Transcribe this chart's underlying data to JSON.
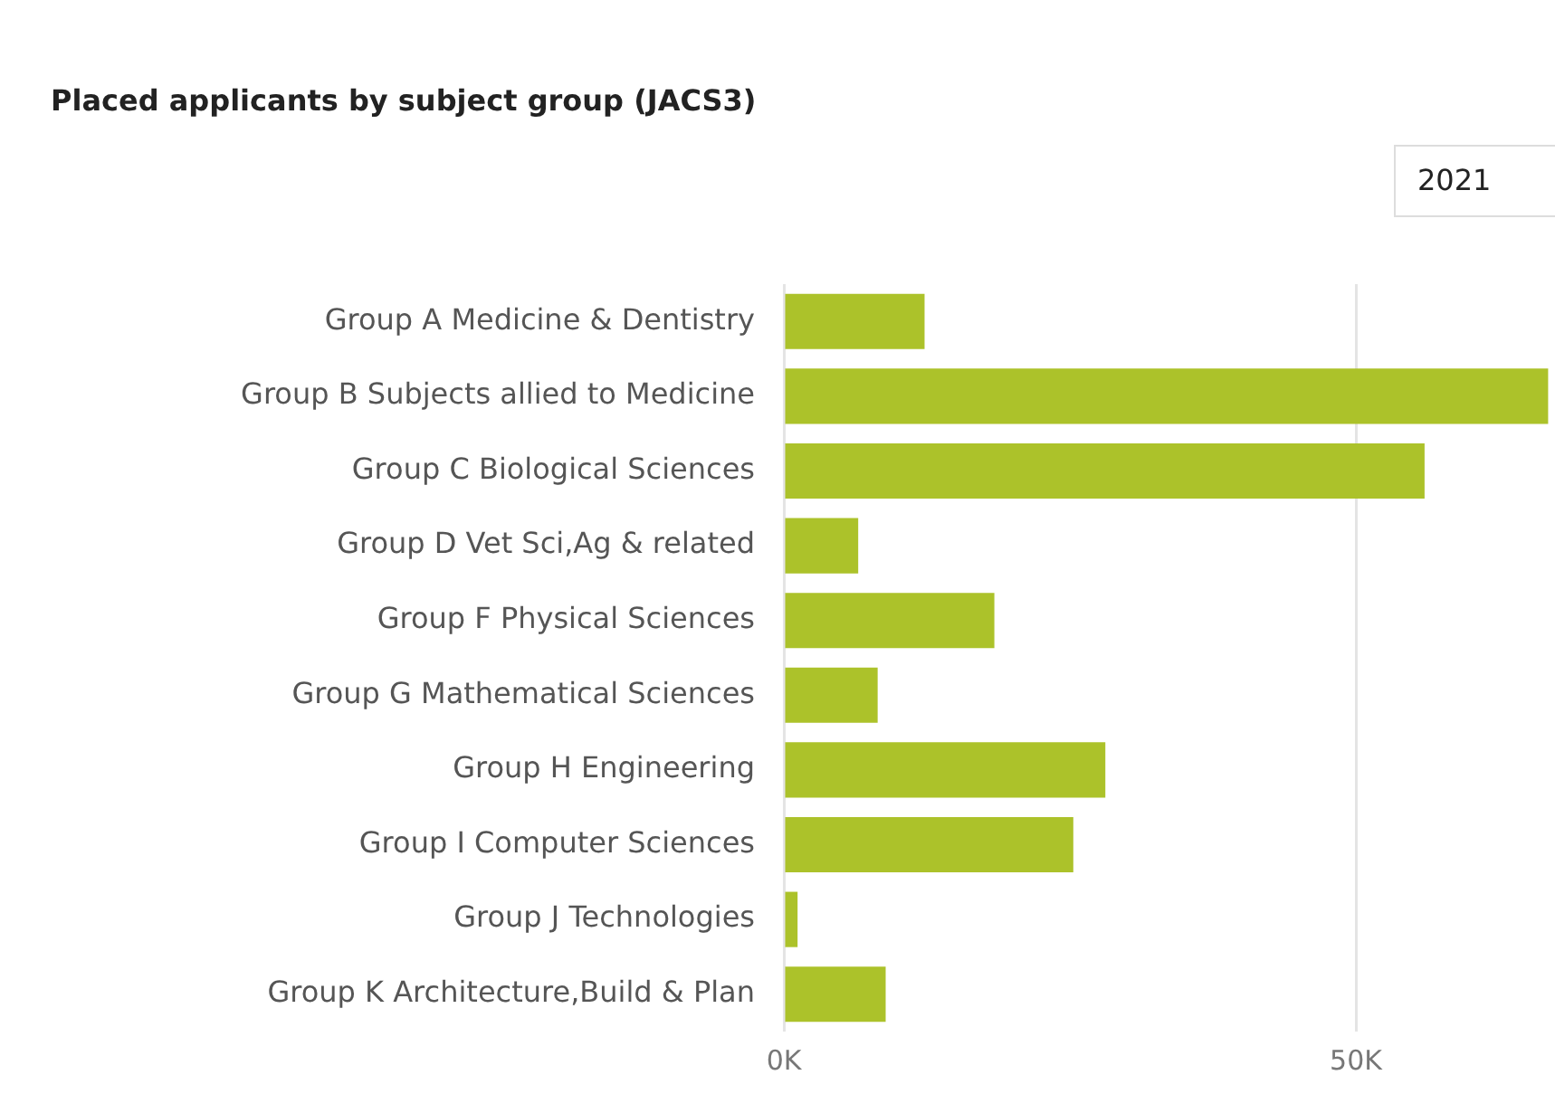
{
  "chart_data": {
    "type": "bar",
    "orientation": "horizontal",
    "title": "Placed applicants by subject group (JACS3)",
    "annotations": [
      "2021"
    ],
    "categories": [
      "Group A Medicine & Dentistry",
      "Group B Subjects allied to Medicine",
      "Group C Biological Sciences",
      "Group D Vet Sci,Ag & related",
      "Group F Physical Sciences",
      "Group G Mathematical Sciences",
      "Group H Engineering",
      "Group I Computer Sciences",
      "Group J Technologies",
      "Group K Architecture,Build & Plan"
    ],
    "values": [
      12300,
      66800,
      56000,
      6500,
      18400,
      8200,
      28100,
      25300,
      1200,
      8900
    ],
    "color": "#acc22a",
    "xlim": [
      0,
      67400
    ],
    "xticks": [
      {
        "value": 0,
        "label": "0K"
      },
      {
        "value": 50000,
        "label": "50K"
      }
    ],
    "grid": "x",
    "legend": false
  }
}
